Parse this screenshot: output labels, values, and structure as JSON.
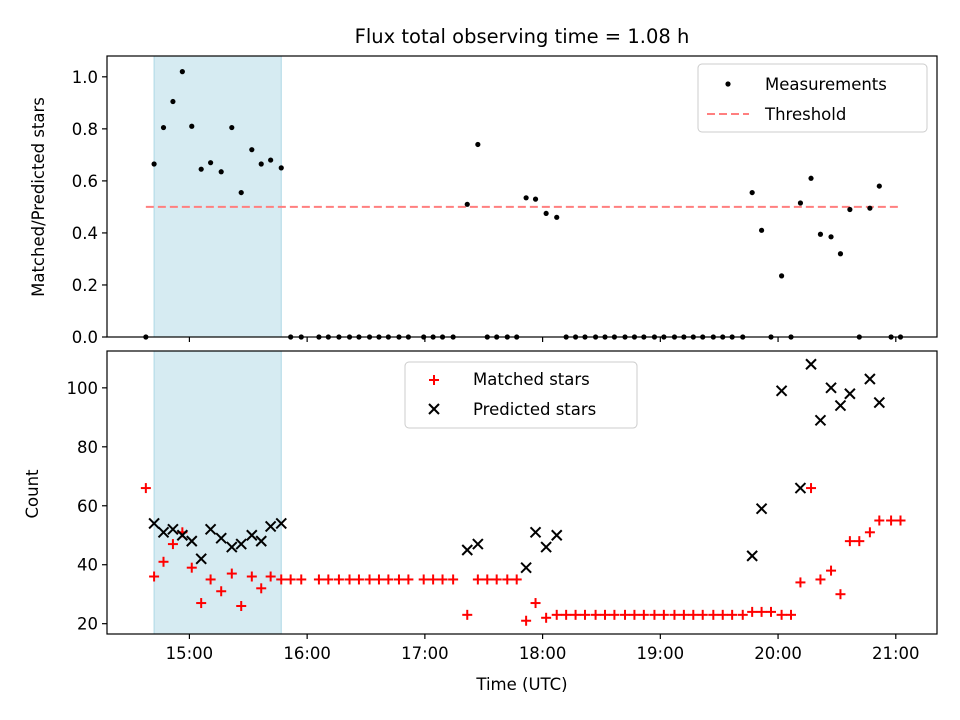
{
  "chart_data": [
    {
      "type": "scatter",
      "title": "Flux total observing time = 1.08 h",
      "xlabel": "",
      "ylabel": "Matched/Predicted stars",
      "xlim": [
        14.3,
        21.35
      ],
      "ylim": [
        0,
        1.08
      ],
      "yticks": [
        0.0,
        0.2,
        0.4,
        0.6,
        0.8,
        1.0
      ],
      "ytick_labels": [
        "0.0",
        "0.2",
        "0.4",
        "0.6",
        "0.8",
        "1.0"
      ],
      "xticks": [
        15,
        16,
        17,
        18,
        19,
        20,
        21
      ],
      "highlight_span": [
        14.7,
        15.78
      ],
      "threshold": {
        "value": 0.5,
        "x_range": [
          14.63,
          21.05
        ],
        "color": "#ff7f7f"
      },
      "legend": [
        "Measurements",
        "Threshold"
      ],
      "legend_position": "top-right",
      "series": [
        {
          "name": "Measurements",
          "color": "#000000",
          "x": [
            14.63,
            14.7,
            14.78,
            14.86,
            14.94,
            15.02,
            15.1,
            15.18,
            15.27,
            15.36,
            15.44,
            15.53,
            15.61,
            15.69,
            15.78,
            15.86,
            15.95,
            16.1,
            16.18,
            16.27,
            16.36,
            16.44,
            16.53,
            16.61,
            16.69,
            16.78,
            16.86,
            16.99,
            17.07,
            17.15,
            17.24,
            17.36,
            17.45,
            17.53,
            17.61,
            17.7,
            17.78,
            17.86,
            17.94,
            18.03,
            18.12,
            18.2,
            18.28,
            18.36,
            18.45,
            18.53,
            18.61,
            18.7,
            18.78,
            18.86,
            18.95,
            19.03,
            19.12,
            19.2,
            19.28,
            19.36,
            19.45,
            19.53,
            19.61,
            19.7,
            19.78,
            19.86,
            19.94,
            20.03,
            20.11,
            20.19,
            20.28,
            20.36,
            20.45,
            20.53,
            20.61,
            20.69,
            20.78,
            20.86,
            20.96,
            21.04
          ],
          "y": [
            0.0,
            0.665,
            0.805,
            0.905,
            1.02,
            0.81,
            0.645,
            0.67,
            0.635,
            0.805,
            0.555,
            0.72,
            0.665,
            0.68,
            0.65,
            0.0,
            0.0,
            0.0,
            0.0,
            0.0,
            0.0,
            0.0,
            0.0,
            0.0,
            0.0,
            0.0,
            0.0,
            0.0,
            0.0,
            0.0,
            0.0,
            0.51,
            0.74,
            0.0,
            0.0,
            0.0,
            0.0,
            0.535,
            0.53,
            0.475,
            0.46,
            0.0,
            0.0,
            0.0,
            0.0,
            0.0,
            0.0,
            0.0,
            0.0,
            0.0,
            0.0,
            0.0,
            0.0,
            0.0,
            0.0,
            0.0,
            0.0,
            0.0,
            0.0,
            0.0,
            0.555,
            0.41,
            0.0,
            0.235,
            0.0,
            0.515,
            0.61,
            0.395,
            0.385,
            0.32,
            0.49,
            0.0,
            0.495,
            0.58,
            0.0,
            0.0
          ]
        }
      ]
    },
    {
      "type": "scatter",
      "title": "",
      "xlabel": "Time (UTC)",
      "ylabel": "Count",
      "xlim": [
        14.3,
        21.35
      ],
      "ylim": [
        16.5,
        112.5
      ],
      "yticks": [
        20,
        40,
        60,
        80,
        100
      ],
      "ytick_labels": [
        "20",
        "40",
        "60",
        "80",
        "100"
      ],
      "xticks": [
        15,
        16,
        17,
        18,
        19,
        20,
        21
      ],
      "xtick_labels": [
        "15:00",
        "16:00",
        "17:00",
        "18:00",
        "19:00",
        "20:00",
        "21:00"
      ],
      "highlight_span": [
        14.7,
        15.78
      ],
      "legend": [
        "Matched stars",
        "Predicted stars"
      ],
      "legend_position": "upper-center",
      "series": [
        {
          "name": "Matched stars",
          "marker": "+",
          "color": "#ff0000",
          "x": [
            14.63,
            14.7,
            14.78,
            14.86,
            14.94,
            15.02,
            15.1,
            15.18,
            15.27,
            15.36,
            15.44,
            15.53,
            15.61,
            15.69,
            15.78,
            15.86,
            15.95,
            16.1,
            16.18,
            16.27,
            16.36,
            16.44,
            16.53,
            16.61,
            16.69,
            16.78,
            16.86,
            16.99,
            17.07,
            17.15,
            17.24,
            17.36,
            17.45,
            17.53,
            17.61,
            17.7,
            17.78,
            17.86,
            17.94,
            18.03,
            18.12,
            18.2,
            18.28,
            18.36,
            18.45,
            18.53,
            18.61,
            18.7,
            18.78,
            18.86,
            18.95,
            19.03,
            19.12,
            19.2,
            19.28,
            19.36,
            19.45,
            19.53,
            19.61,
            19.7,
            19.78,
            19.86,
            19.94,
            20.03,
            20.11,
            20.19,
            20.28,
            20.36,
            20.45,
            20.53,
            20.61,
            20.69,
            20.78,
            20.86,
            20.96,
            21.04
          ],
          "y": [
            66,
            36,
            41,
            47,
            51,
            39,
            27,
            35,
            31,
            37,
            26,
            36,
            32,
            36,
            35,
            35,
            35,
            35,
            35,
            35,
            35,
            35,
            35,
            35,
            35,
            35,
            35,
            35,
            35,
            35,
            35,
            23,
            35,
            35,
            35,
            35,
            35,
            21,
            27,
            22,
            23,
            23,
            23,
            23,
            23,
            23,
            23,
            23,
            23,
            23,
            23,
            23,
            23,
            23,
            23,
            23,
            23,
            23,
            23,
            23,
            24,
            24,
            24,
            23,
            23,
            34,
            66,
            35,
            38,
            30,
            48,
            48,
            51,
            55,
            55,
            55
          ]
        },
        {
          "name": "Predicted stars",
          "marker": "x",
          "color": "#000000",
          "x": [
            14.7,
            14.78,
            14.86,
            14.94,
            15.02,
            15.1,
            15.18,
            15.27,
            15.36,
            15.44,
            15.53,
            15.61,
            15.69,
            15.78,
            17.36,
            17.45,
            17.86,
            17.94,
            18.03,
            18.12,
            19.78,
            19.86,
            20.03,
            20.19,
            20.28,
            20.36,
            20.45,
            20.53,
            20.61,
            20.78,
            20.86
          ],
          "y": [
            54,
            51,
            52,
            50,
            48,
            42,
            52,
            49,
            46,
            47,
            50,
            48,
            53,
            54,
            45,
            47,
            39,
            51,
            46,
            50,
            43,
            59,
            99,
            66,
            108,
            89,
            100,
            94,
            98,
            103,
            95
          ]
        }
      ]
    }
  ]
}
